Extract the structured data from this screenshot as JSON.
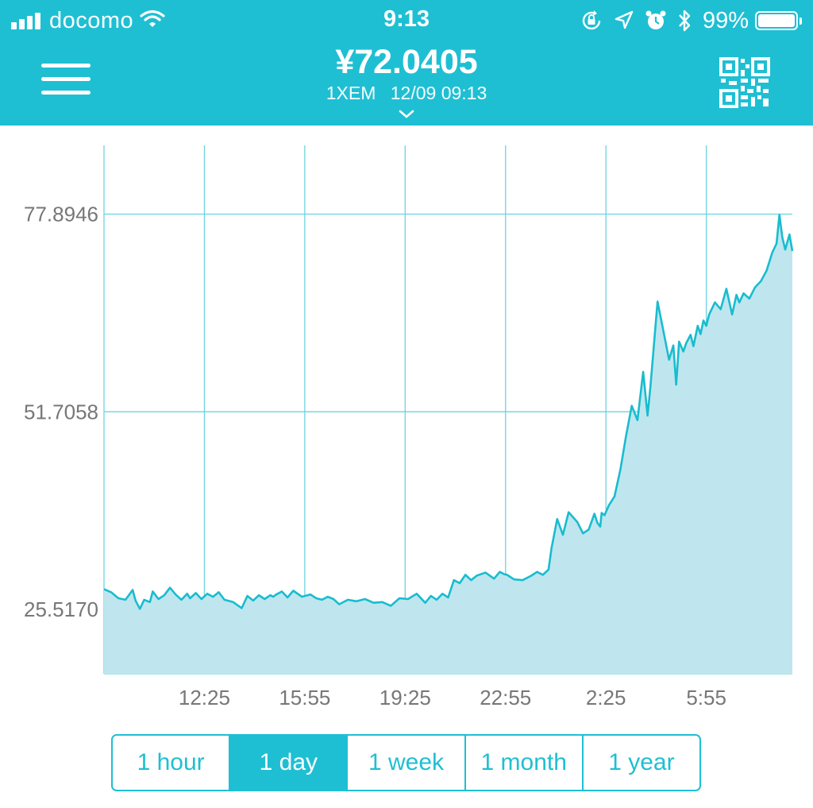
{
  "status_bar": {
    "carrier": "docomo",
    "time": "9:13",
    "battery": "99%",
    "icons": [
      "signal-icon",
      "wifi-icon",
      "orientation-lock-icon",
      "location-icon",
      "alarm-icon",
      "bluetooth-icon",
      "battery-icon"
    ]
  },
  "header": {
    "price": "¥72.0405",
    "unit": "1XEM",
    "datetime": "12/09 09:13",
    "menu_icon": "hamburger-menu-icon",
    "qr_icon": "qr-code-icon",
    "expand_icon": "chevron-down-icon"
  },
  "colors": {
    "accent": "#1fbfd3",
    "line": "#19bccf",
    "area": "#bfe6ee",
    "grid": "#6dd3e0",
    "text": "#777777"
  },
  "chart_data": {
    "type": "area",
    "y_ticks": [
      "77.8946",
      "51.7058",
      "25.5170"
    ],
    "y_tick_values": [
      77.8946,
      51.7058,
      25.517
    ],
    "x_ticks": [
      "12:25",
      "15:55",
      "19:25",
      "22:55",
      "2:25",
      "5:55"
    ],
    "x_tick_hours": [
      3.5,
      7,
      10.5,
      14,
      17.5,
      21
    ],
    "x_range_hours": [
      0,
      24
    ],
    "y_range": [
      17.0,
      87.0
    ],
    "grid": true,
    "series": [
      {
        "x": [
          0,
          0.25,
          0.5,
          0.75,
          1.0,
          1.1,
          1.25,
          1.4,
          1.6,
          1.7,
          1.9,
          2.1,
          2.3,
          2.5,
          2.7,
          2.9,
          3.0,
          3.2,
          3.4,
          3.6,
          3.8,
          4.0,
          4.2,
          4.5,
          4.8,
          5.0,
          5.2,
          5.4,
          5.6,
          5.8,
          5.9,
          6.0,
          6.2,
          6.4,
          6.6,
          6.9,
          7.2,
          7.4,
          7.6,
          7.8,
          8.0,
          8.2,
          8.5,
          8.8,
          9.1,
          9.4,
          9.7,
          10.0,
          10.3,
          10.6,
          10.9,
          11.2,
          11.4,
          11.6,
          11.8,
          12.0,
          12.2,
          12.4,
          12.6,
          12.8,
          13.0,
          13.3,
          13.6,
          13.8,
          13.95,
          14.05,
          14.3,
          14.6,
          14.9,
          15.1,
          15.3,
          15.5,
          15.6,
          15.8,
          16.0,
          16.2,
          16.5,
          16.7,
          16.9,
          17.1,
          17.2,
          17.3,
          17.35,
          17.45,
          17.6,
          17.8,
          18.0,
          18.2,
          18.4,
          18.6,
          18.8,
          18.95,
          19.05,
          19.3,
          19.5,
          19.7,
          19.85,
          19.95,
          20.05,
          20.2,
          20.3,
          20.45,
          20.55,
          20.7,
          20.8,
          20.9,
          21.0,
          21.1,
          21.3,
          21.5,
          21.7,
          21.9,
          22.05,
          22.15,
          22.3,
          22.5,
          22.7,
          22.9,
          23.1,
          23.3,
          23.45,
          23.55,
          23.65,
          23.75,
          23.9,
          24.0
        ],
        "y": [
          28.2,
          27.8,
          27.0,
          26.8,
          28.1,
          26.7,
          25.6,
          26.8,
          26.5,
          27.9,
          26.9,
          27.4,
          28.4,
          27.5,
          26.8,
          27.6,
          27.0,
          27.7,
          26.9,
          27.6,
          27.2,
          27.8,
          26.8,
          26.5,
          25.7,
          27.3,
          26.7,
          27.4,
          26.9,
          27.4,
          27.2,
          27.5,
          27.9,
          27.1,
          28.0,
          27.2,
          27.5,
          27.0,
          26.8,
          27.2,
          26.9,
          26.2,
          26.8,
          26.6,
          26.9,
          26.4,
          26.5,
          26.0,
          27.0,
          26.9,
          27.6,
          26.4,
          27.3,
          26.8,
          27.6,
          27.1,
          29.4,
          29.0,
          30.1,
          29.4,
          30.0,
          30.4,
          29.6,
          30.5,
          30.2,
          30.1,
          29.5,
          29.4,
          30.0,
          30.5,
          30.1,
          30.8,
          33.6,
          37.5,
          35.4,
          38.4,
          37.1,
          35.6,
          36.1,
          38.2,
          37.0,
          36.5,
          38.3,
          38.0,
          39.3,
          40.5,
          44.0,
          48.5,
          52.5,
          50.6,
          57.0,
          51.2,
          55.0,
          66.3,
          62.5,
          58.6,
          60.5,
          55.3,
          61.0,
          59.7,
          60.8,
          61.9,
          60.4,
          63.1,
          62.0,
          63.8,
          63.1,
          64.6,
          66.2,
          65.3,
          68.0,
          64.6,
          67.2,
          66.2,
          67.4,
          66.7,
          68.2,
          69.0,
          70.4,
          72.8,
          74.0,
          77.8,
          74.8,
          73.2,
          75.2,
          73.0
        ]
      }
    ]
  },
  "range_selector": {
    "options": [
      "1 hour",
      "1 day",
      "1 week",
      "1 month",
      "1 year"
    ],
    "selected": "1 day"
  }
}
